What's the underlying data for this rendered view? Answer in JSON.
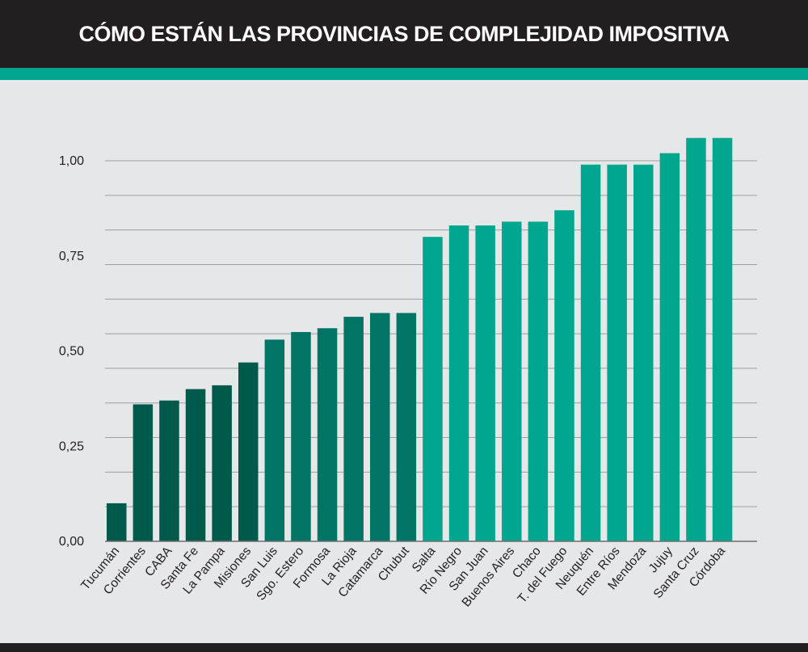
{
  "title": "CÓMO ESTÁN LAS PROVINCIAS DE COMPLEJIDAD IMPOSITIVA",
  "colors": {
    "header_bg": "#231f20",
    "accent": "#00a68e",
    "background": "#e6e7e8",
    "bar_dark": "#005a4b",
    "bar_mid": "#007565",
    "bar_light": "#00a68e"
  },
  "chart_data": {
    "type": "bar",
    "title": "CÓMO ESTÁN LAS PROVINCIAS DE COMPLEJIDAD IMPOSITIVA",
    "xlabel": "",
    "ylabel": "",
    "ylim": [
      0,
      1
    ],
    "yticks": [
      "0,00",
      "0,25",
      "0,50",
      "0,75",
      "1,00"
    ],
    "grid": true,
    "categories": [
      "Tucumán",
      "Corrientes",
      "CABA",
      "Santa Fe",
      "La Pampa",
      "Misiones",
      "San Luis",
      "Sgo. Estero",
      "Formosa",
      "La Rioja",
      "Catamarca",
      "Chubut",
      "Salta",
      "Río Negro",
      "San Juan",
      "Buenos Aires",
      "Chaco",
      "T. del Fuego",
      "Neuquén",
      "Entre Ríos",
      "Mendoza",
      "Jujuy",
      "Santa Cruz",
      "Córdoba"
    ],
    "values": [
      0.1,
      0.36,
      0.37,
      0.4,
      0.41,
      0.47,
      0.53,
      0.55,
      0.56,
      0.59,
      0.6,
      0.6,
      0.8,
      0.83,
      0.83,
      0.84,
      0.84,
      0.87,
      0.99,
      0.99,
      0.99,
      1.02,
      1.06,
      1.06
    ],
    "color_groups": [
      "dark",
      "dark",
      "dark",
      "dark",
      "dark",
      "dark",
      "mid",
      "mid",
      "mid",
      "mid",
      "mid",
      "mid",
      "light",
      "light",
      "light",
      "light",
      "light",
      "light",
      "light",
      "light",
      "light",
      "light",
      "light",
      "light"
    ]
  }
}
